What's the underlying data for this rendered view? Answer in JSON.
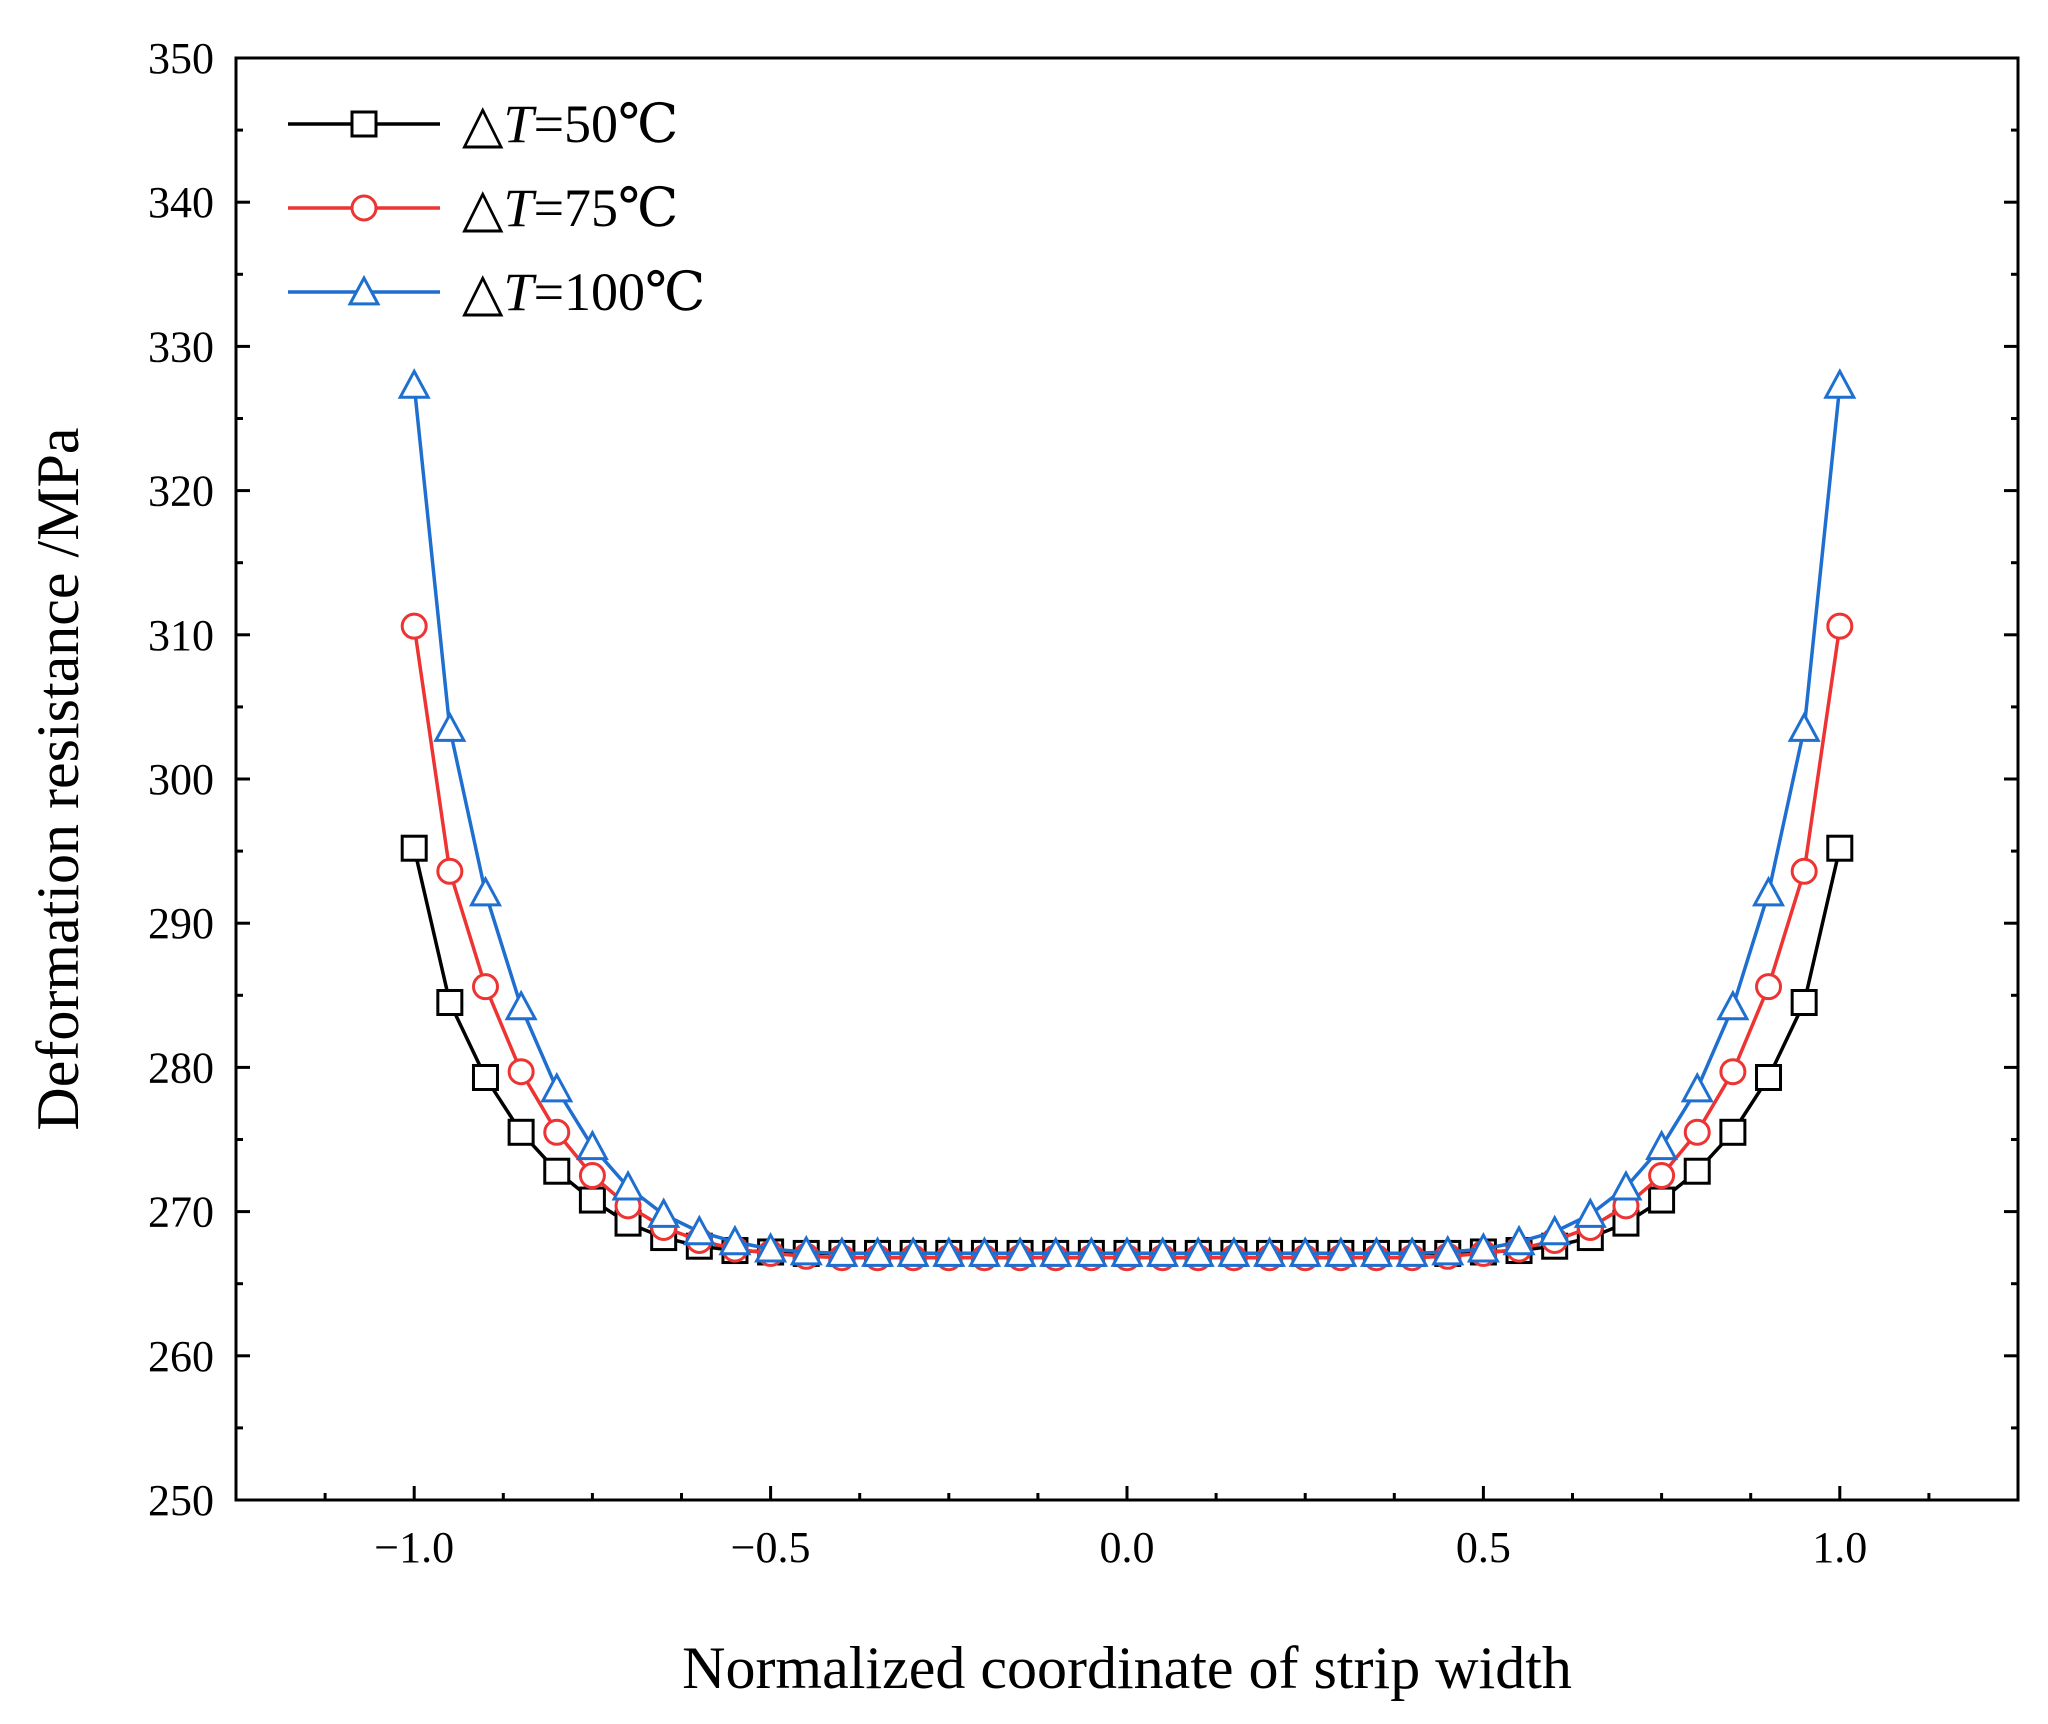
{
  "chart_data": {
    "type": "line",
    "title": "",
    "xlabel": "Normalized coordinate of strip width",
    "ylabel": "Deformation resistance /MPa",
    "xlim": [
      -1.25,
      1.25
    ],
    "ylim": [
      250,
      350
    ],
    "xticks": [
      -1.0,
      -0.5,
      0.0,
      0.5,
      1.0
    ],
    "xtick_labels": [
      "−1.0",
      "−0.5",
      "0.0",
      "0.5",
      "1.0"
    ],
    "yticks": [
      250,
      260,
      270,
      280,
      290,
      300,
      310,
      320,
      330,
      340,
      350
    ],
    "ytick_labels": [
      "250",
      "260",
      "270",
      "280",
      "290",
      "300",
      "310",
      "320",
      "330",
      "340",
      "350"
    ],
    "grid": false,
    "legend_position": "top-left",
    "x": [
      -1.0,
      -0.95,
      -0.9,
      -0.85,
      -0.8,
      -0.75,
      -0.7,
      -0.65,
      -0.6,
      -0.55,
      -0.5,
      -0.45,
      -0.4,
      -0.35,
      -0.3,
      -0.25,
      -0.2,
      -0.15,
      -0.1,
      -0.05,
      0.0,
      0.05,
      0.1,
      0.15,
      0.2,
      0.25,
      0.3,
      0.35,
      0.4,
      0.45,
      0.5,
      0.55,
      0.6,
      0.65,
      0.7,
      0.75,
      0.8,
      0.85,
      0.9,
      0.95,
      1.0
    ],
    "series": [
      {
        "name": "△T=50℃",
        "legend_prefix": "△",
        "legend_var": "T",
        "legend_suffix": "=50℃",
        "color": "#000000",
        "marker": "square",
        "values": [
          295.2,
          284.5,
          279.3,
          275.5,
          272.8,
          270.8,
          269.2,
          268.2,
          267.6,
          267.3,
          267.2,
          267.1,
          267.1,
          267.1,
          267.1,
          267.1,
          267.1,
          267.1,
          267.1,
          267.1,
          267.1,
          267.1,
          267.1,
          267.1,
          267.1,
          267.1,
          267.1,
          267.1,
          267.1,
          267.1,
          267.2,
          267.3,
          267.6,
          268.2,
          269.2,
          270.8,
          272.8,
          275.5,
          279.3,
          284.5,
          295.2
        ]
      },
      {
        "name": "△T=75℃",
        "legend_prefix": "△",
        "legend_var": "T",
        "legend_suffix": "=75℃",
        "color": "#ee3333",
        "marker": "circle",
        "values": [
          310.6,
          293.6,
          285.6,
          279.7,
          275.5,
          272.5,
          270.4,
          268.9,
          268.0,
          267.4,
          267.1,
          266.9,
          266.8,
          266.8,
          266.8,
          266.8,
          266.8,
          266.8,
          266.8,
          266.8,
          266.8,
          266.8,
          266.8,
          266.8,
          266.8,
          266.8,
          266.8,
          266.8,
          266.8,
          266.9,
          267.1,
          267.4,
          268.0,
          268.9,
          270.4,
          272.5,
          275.5,
          279.7,
          285.6,
          293.6,
          310.6
        ]
      },
      {
        "name": "△T=100℃",
        "legend_prefix": "△",
        "legend_var": "T",
        "legend_suffix": "=100℃",
        "color": "#1f6fd0",
        "marker": "triangle",
        "values": [
          327.3,
          303.5,
          292.1,
          284.2,
          278.5,
          274.5,
          271.7,
          269.8,
          268.6,
          267.9,
          267.4,
          267.2,
          267.1,
          267.1,
          267.1,
          267.1,
          267.1,
          267.1,
          267.1,
          267.1,
          267.1,
          267.1,
          267.1,
          267.1,
          267.1,
          267.1,
          267.1,
          267.1,
          267.1,
          267.2,
          267.4,
          267.9,
          268.6,
          269.8,
          271.7,
          274.5,
          278.5,
          284.2,
          292.1,
          303.5,
          327.3
        ]
      }
    ]
  }
}
